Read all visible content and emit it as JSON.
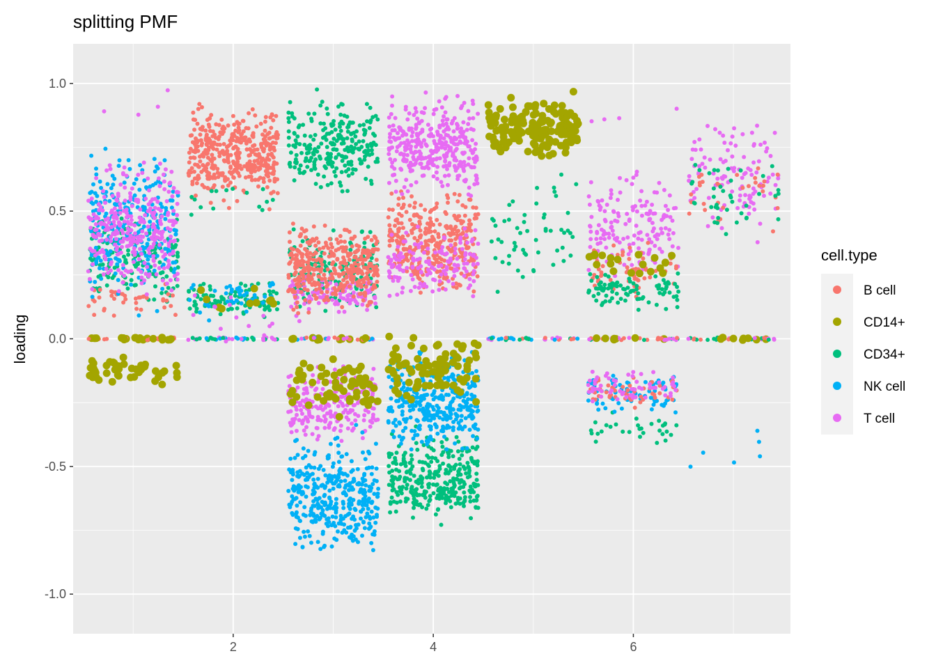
{
  "chart_data": {
    "type": "scatter",
    "title": "splitting PMF",
    "xlabel": "",
    "ylabel": "loading",
    "xlim": [
      0.4,
      7.57
    ],
    "ylim": [
      -1.155,
      1.155
    ],
    "x_ticks": [
      2,
      4,
      6
    ],
    "x_tick_labels": [
      "2",
      "4",
      "6"
    ],
    "y_ticks": [
      -1.0,
      -0.5,
      0.0,
      0.5,
      1.0
    ],
    "y_tick_labels": [
      "-1.0",
      "-0.5",
      "0.0",
      "0.5",
      "1.0"
    ],
    "grid": true,
    "jitter_width": 0.45,
    "legend": {
      "title": "cell.type",
      "placement": "right",
      "entries": [
        {
          "label": "B cell",
          "color": "#F8766D"
        },
        {
          "label": "CD14+",
          "color": "#A3A500"
        },
        {
          "label": "CD34+",
          "color": "#00BF7D"
        },
        {
          "label": "NK cell",
          "color": "#00B0F6"
        },
        {
          "label": "T cell",
          "color": "#E76BF3"
        }
      ]
    },
    "clusters": [
      {
        "x": 1,
        "type": "CD34+",
        "ymin": 0.05,
        "ymax": 0.6,
        "n": 160
      },
      {
        "x": 1,
        "type": "B cell",
        "ymin": 0.05,
        "ymax": 0.25,
        "n": 40
      },
      {
        "x": 1,
        "type": "NK cell",
        "ymin": 0.05,
        "ymax": 0.85,
        "n": 260
      },
      {
        "x": 1,
        "type": "T cell",
        "ymin": 0.08,
        "ymax": 0.78,
        "n": 320
      },
      {
        "x": 1,
        "type": "CD14+",
        "ymin": -0.22,
        "ymax": -0.04,
        "n": 45
      },
      {
        "x": 1,
        "type": "T cell",
        "ymin": 0.8,
        "ymax": 1.0,
        "n": 4
      },
      {
        "x": 2,
        "type": "B cell",
        "ymin": 0.48,
        "ymax": 0.98,
        "n": 420
      },
      {
        "x": 2,
        "type": "CD34+",
        "ymin": 0.45,
        "ymax": 0.65,
        "n": 15
      },
      {
        "x": 2,
        "type": "CD34+",
        "ymin": 0.06,
        "ymax": 0.25,
        "n": 90
      },
      {
        "x": 2,
        "type": "NK cell",
        "ymin": 0.06,
        "ymax": 0.28,
        "n": 45
      },
      {
        "x": 2,
        "type": "CD14+",
        "ymin": 0.08,
        "ymax": 0.22,
        "n": 10
      },
      {
        "x": 2,
        "type": "T cell",
        "ymin": -0.18,
        "ymax": 0.3,
        "n": 15
      },
      {
        "x": 3,
        "type": "CD34+",
        "ymin": 0.5,
        "ymax": 1.0,
        "n": 260
      },
      {
        "x": 3,
        "type": "CD34+",
        "ymin": 0.05,
        "ymax": 0.5,
        "n": 150
      },
      {
        "x": 3,
        "type": "T cell",
        "ymin": 0.05,
        "ymax": 0.3,
        "n": 120
      },
      {
        "x": 3,
        "type": "B cell",
        "ymin": 0.06,
        "ymax": 0.5,
        "n": 360
      },
      {
        "x": 3,
        "type": "T cell",
        "ymin": -0.45,
        "ymax": -0.05,
        "n": 220
      },
      {
        "x": 3,
        "type": "CD14+",
        "ymin": -0.33,
        "ymax": -0.05,
        "n": 60
      },
      {
        "x": 3,
        "type": "NK cell",
        "ymin": -0.93,
        "ymax": -0.3,
        "n": 380
      },
      {
        "x": 4,
        "type": "B cell",
        "ymin": 0.1,
        "ymax": 0.65,
        "n": 360
      },
      {
        "x": 4,
        "type": "T cell",
        "ymin": 0.1,
        "ymax": 0.5,
        "n": 150
      },
      {
        "x": 4,
        "type": "T cell",
        "ymin": 0.5,
        "ymax": 1.0,
        "n": 360
      },
      {
        "x": 4,
        "type": "CD34+",
        "ymin": -0.78,
        "ymax": -0.3,
        "n": 320
      },
      {
        "x": 4,
        "type": "NK cell",
        "ymin": -0.5,
        "ymax": 0.0,
        "n": 360
      },
      {
        "x": 4,
        "type": "CD14+",
        "ymin": -0.3,
        "ymax": 0.08,
        "n": 80
      },
      {
        "x": 5,
        "type": "CD34+",
        "ymin": 0.1,
        "ymax": 0.75,
        "n": 55
      },
      {
        "x": 5,
        "type": "CD14+",
        "ymin": 0.65,
        "ymax": 1.0,
        "n": 160
      },
      {
        "x": 6,
        "type": "T cell",
        "ymin": 0.15,
        "ymax": 0.75,
        "n": 160
      },
      {
        "x": 6,
        "type": "B cell",
        "ymin": 0.1,
        "ymax": 0.45,
        "n": 60
      },
      {
        "x": 6,
        "type": "CD34+",
        "ymin": 0.08,
        "ymax": 0.3,
        "n": 90
      },
      {
        "x": 6,
        "type": "CD14+",
        "ymin": 0.18,
        "ymax": 0.4,
        "n": 20
      },
      {
        "x": 6,
        "type": "T cell",
        "ymin": 0.8,
        "ymax": 1.0,
        "n": 4
      },
      {
        "x": 6,
        "type": "CD34+",
        "ymin": -0.45,
        "ymax": -0.25,
        "n": 30
      },
      {
        "x": 6,
        "type": "NK cell",
        "ymin": -0.32,
        "ymax": -0.1,
        "n": 80
      },
      {
        "x": 6,
        "type": "B cell",
        "ymin": -0.3,
        "ymax": -0.12,
        "n": 50
      },
      {
        "x": 6,
        "type": "T cell",
        "ymin": -0.28,
        "ymax": -0.1,
        "n": 60
      },
      {
        "x": 7,
        "type": "T cell",
        "ymin": 0.3,
        "ymax": 1.0,
        "n": 110
      },
      {
        "x": 7,
        "type": "B cell",
        "ymin": 0.4,
        "ymax": 0.75,
        "n": 30
      },
      {
        "x": 7,
        "type": "CD34+",
        "ymin": 0.25,
        "ymax": 0.85,
        "n": 40
      },
      {
        "x": 7,
        "type": "NK cell",
        "ymin": -0.55,
        "ymax": -0.3,
        "n": 6
      }
    ],
    "zero_rows": [
      {
        "x": 1,
        "types": [
          "B cell",
          "CD14+"
        ],
        "n": 40
      },
      {
        "x": 2,
        "types": [
          "NK cell",
          "T cell",
          "CD34+"
        ],
        "n": 40
      },
      {
        "x": 3,
        "types": [
          "B cell",
          "CD14+",
          "T cell",
          "NK cell"
        ],
        "n": 40
      },
      {
        "x": 5,
        "types": [
          "B cell",
          "CD34+",
          "T cell",
          "NK cell"
        ],
        "n": 40
      },
      {
        "x": 6,
        "types": [
          "CD14+",
          "CD34+",
          "T cell",
          "B cell"
        ],
        "n": 40
      },
      {
        "x": 7,
        "types": [
          "CD14+",
          "B cell",
          "T cell",
          "CD34+"
        ],
        "n": 40
      }
    ]
  }
}
